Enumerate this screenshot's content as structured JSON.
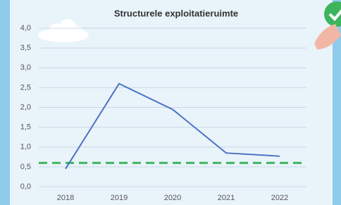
{
  "chart_data": {
    "type": "line",
    "title": "Structurele exploitatieruimte",
    "categories": [
      "2018",
      "2019",
      "2020",
      "2021",
      "2022"
    ],
    "values": [
      0.45,
      2.6,
      1.95,
      0.85,
      0.77
    ],
    "color": "#4a72c4",
    "reference_line": {
      "value": 0.6,
      "color": "#3cb55e"
    },
    "ylim": [
      0,
      4
    ],
    "yticks": [
      {
        "value": 0,
        "label": "0,0"
      },
      {
        "value": 0.5,
        "label": "0,5"
      },
      {
        "value": 1,
        "label": "1,0"
      },
      {
        "value": 1.5,
        "label": "1,5"
      },
      {
        "value": 2,
        "label": "2,0"
      },
      {
        "value": 2.5,
        "label": "2,5"
      },
      {
        "value": 3,
        "label": "3,0"
      },
      {
        "value": 3.5,
        "label": "3,5"
      },
      {
        "value": 4,
        "label": "4,0"
      }
    ],
    "grid": true
  }
}
